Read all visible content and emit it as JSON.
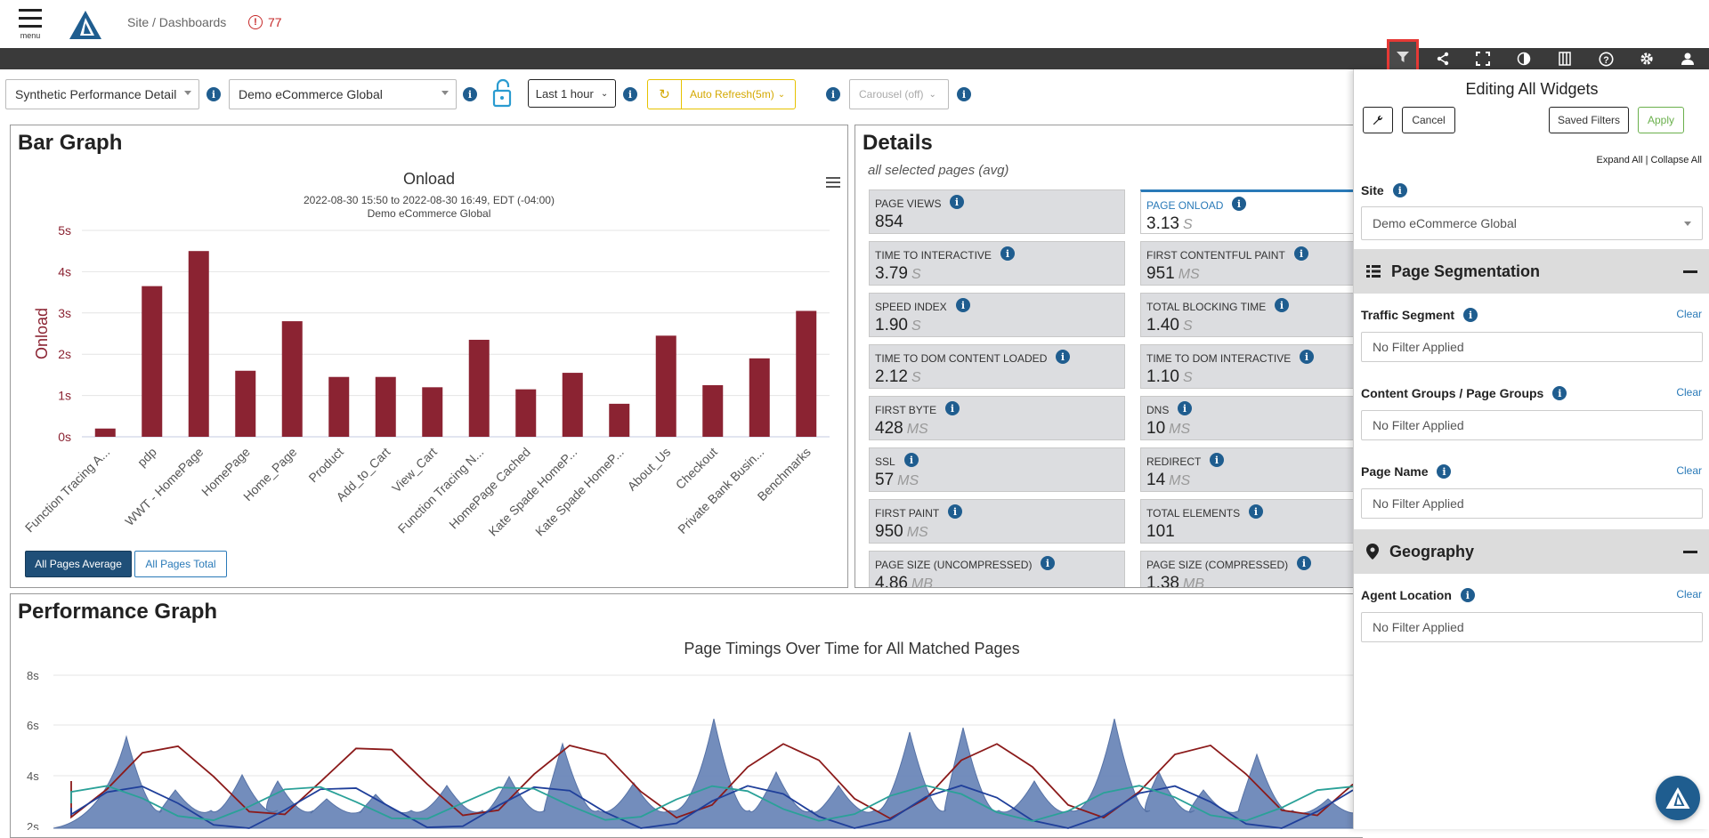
{
  "header": {
    "menu_label": "menu",
    "breadcrumb": "Site / Dashboards",
    "alert_count": "77",
    "alert_symbol": "!"
  },
  "toolbar_icons": [
    "filter-icon",
    "share-icon",
    "fullscreen-icon",
    "contrast-icon",
    "columns-icon",
    "help-icon",
    "gear-icon",
    "user-icon"
  ],
  "controls": {
    "dashboard_select": "Synthetic Performance Detail",
    "site_select": "Demo eCommerce Global",
    "time_range": "Last 1 hour",
    "auto_refresh": "Auto Refresh(5m)",
    "carousel": "Carousel (off)"
  },
  "bar_graph": {
    "panel_title": "Bar Graph",
    "buttons": {
      "average": "All Pages Average",
      "total": "All Pages Total"
    },
    "date_range": "2022-08-30 15:50 to 2022-08-30 16:49, EDT (-04:00)",
    "site": "Demo eCommerce Global"
  },
  "chart_data": [
    {
      "type": "bar",
      "title": "Onload",
      "ylabel": "Onload",
      "ylim": [
        0,
        5
      ],
      "yticks": [
        "0s",
        "1s",
        "2s",
        "3s",
        "4s",
        "5s"
      ],
      "categories": [
        "Function Tracing A...",
        "pdp",
        "WWT - HomePage",
        "HomePage",
        "Home_Page",
        "Product",
        "Add_to_Cart",
        "View_Cart",
        "Function Tracing N...",
        "HomePage Cached",
        "Kate Spade HomeP...",
        "Kate Spade HomeP...",
        "About_Us",
        "Checkout",
        "Private Bank Busin...",
        "Benchmarks"
      ],
      "values": [
        0.2,
        3.65,
        4.5,
        1.6,
        2.8,
        1.45,
        1.45,
        1.2,
        2.35,
        1.15,
        1.55,
        0.8,
        2.45,
        1.25,
        1.9,
        3.05
      ],
      "color": "#8b2332"
    },
    {
      "type": "area",
      "title": "Page Timings Over Time for All Matched Pages",
      "yticks": [
        "2s",
        "4s",
        "6s",
        "8s"
      ],
      "ylim": [
        2,
        8
      ],
      "grid": true
    }
  ],
  "details": {
    "panel_title": "Details",
    "subtitle": "all selected pages (avg)",
    "metrics": [
      {
        "label": "PAGE VIEWS",
        "value": "854",
        "unit": ""
      },
      {
        "label": "PAGE ONLOAD",
        "value": "3.13",
        "unit": "S"
      },
      {
        "label": "TIME TO INTERACTIVE",
        "value": "3.79",
        "unit": "S"
      },
      {
        "label": "FIRST CONTENTFUL PAINT",
        "value": "951",
        "unit": "MS"
      },
      {
        "label": "SPEED INDEX",
        "value": "1.90",
        "unit": "S"
      },
      {
        "label": "TOTAL BLOCKING TIME",
        "value": "1.40",
        "unit": "S"
      },
      {
        "label": "TIME TO DOM CONTENT LOADED",
        "value": "2.12",
        "unit": "S"
      },
      {
        "label": "TIME TO DOM INTERACTIVE",
        "value": "1.10",
        "unit": "S"
      },
      {
        "label": "FIRST BYTE",
        "value": "428",
        "unit": "MS"
      },
      {
        "label": "DNS",
        "value": "10",
        "unit": "MS"
      },
      {
        "label": "SSL",
        "value": "57",
        "unit": "MS"
      },
      {
        "label": "REDIRECT",
        "value": "14",
        "unit": "MS"
      },
      {
        "label": "FIRST PAINT",
        "value": "950",
        "unit": "MS"
      },
      {
        "label": "TOTAL ELEMENTS",
        "value": "101",
        "unit": ""
      },
      {
        "label": "PAGE SIZE (UNCOMPRESSED)",
        "value": "4.86",
        "unit": "MB"
      },
      {
        "label": "PAGE SIZE (COMPRESSED)",
        "value": "1.38",
        "unit": "MB"
      }
    ]
  },
  "performance_graph": {
    "panel_title": "Performance Graph"
  },
  "filter_panel": {
    "title": "Editing All Widgets",
    "cancel": "Cancel",
    "saved_filters": "Saved Filters",
    "apply": "Apply",
    "expand_all": "Expand All",
    "separator": "|",
    "collapse_all": "Collapse All",
    "site_label": "Site",
    "site_value": "Demo eCommerce Global",
    "page_segmentation": "Page Segmentation",
    "traffic_segment": "Traffic Segment",
    "content_groups": "Content Groups / Page Groups",
    "page_name": "Page Name",
    "geography": "Geography",
    "agent_location": "Agent Location",
    "clear": "Clear",
    "no_filter": "No Filter Applied"
  }
}
